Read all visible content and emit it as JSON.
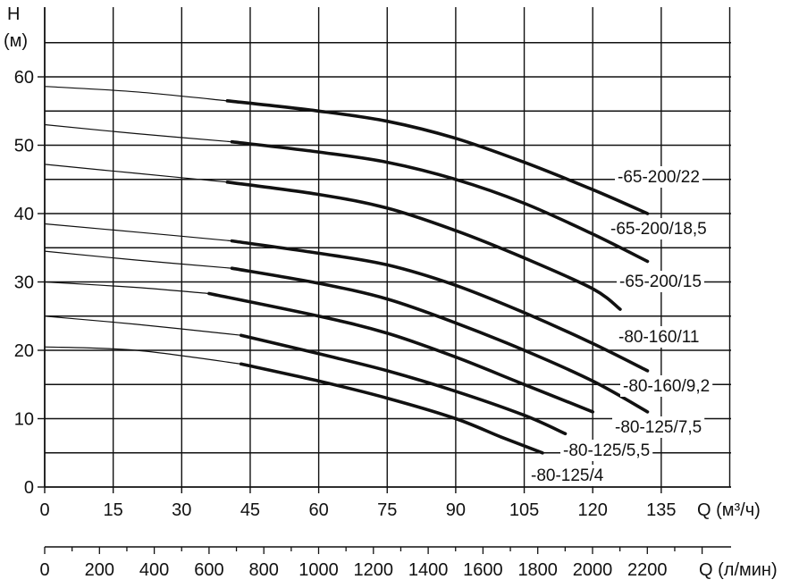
{
  "chart_data": {
    "type": "line",
    "y_axis": {
      "title_line1": "H",
      "title_line2": "(м)",
      "range": [
        0,
        65
      ],
      "ticks": [
        0,
        10,
        20,
        30,
        40,
        50,
        60
      ]
    },
    "x_axis": {
      "title": "Q (м³/ч)",
      "range": [
        0,
        150
      ],
      "ticks": [
        0,
        15,
        30,
        45,
        60,
        75,
        90,
        105,
        120,
        135
      ]
    },
    "x_axis_secondary": {
      "title": "Q (л/мин)",
      "ticks": [
        0,
        200,
        400,
        600,
        800,
        1000,
        1200,
        1400,
        1600,
        1800,
        2000,
        2200
      ]
    },
    "grid": true,
    "series": [
      {
        "name": "-65-200/22",
        "thin": [
          [
            0,
            58.6
          ],
          [
            20,
            57.8
          ],
          [
            40,
            56.5
          ]
        ],
        "thick": [
          [
            40,
            56.5
          ],
          [
            60,
            55
          ],
          [
            75,
            53.5
          ],
          [
            90,
            51
          ],
          [
            105,
            47.5
          ],
          [
            120,
            43.5
          ],
          [
            132,
            40
          ]
        ]
      },
      {
        "name": "-65-200/18,5",
        "thin": [
          [
            0,
            53
          ],
          [
            20,
            51.7
          ],
          [
            41,
            50.5
          ]
        ],
        "thick": [
          [
            41,
            50.5
          ],
          [
            60,
            49
          ],
          [
            75,
            47.5
          ],
          [
            90,
            45
          ],
          [
            105,
            41.5
          ],
          [
            120,
            37
          ],
          [
            132,
            33
          ]
        ]
      },
      {
        "name": "-65-200/15",
        "thin": [
          [
            0,
            47.2
          ],
          [
            20,
            45.9
          ],
          [
            40,
            44.6
          ]
        ],
        "thick": [
          [
            40,
            44.6
          ],
          [
            60,
            42.8
          ],
          [
            75,
            40.8
          ],
          [
            90,
            37.5
          ],
          [
            105,
            33.5
          ],
          [
            120,
            29
          ],
          [
            126,
            26
          ]
        ]
      },
      {
        "name": "-80-160/11",
        "thin": [
          [
            0,
            38.5
          ],
          [
            20,
            37.3
          ],
          [
            41,
            36
          ]
        ],
        "thick": [
          [
            41,
            36
          ],
          [
            60,
            34.2
          ],
          [
            75,
            32.5
          ],
          [
            90,
            29.5
          ],
          [
            105,
            25.5
          ],
          [
            120,
            21
          ],
          [
            132,
            17
          ]
        ]
      },
      {
        "name": "-80-160/9,2",
        "thin": [
          [
            0,
            34.5
          ],
          [
            20,
            33.2
          ],
          [
            41,
            32
          ]
        ],
        "thick": [
          [
            41,
            32
          ],
          [
            60,
            29.8
          ],
          [
            75,
            27.5
          ],
          [
            90,
            24
          ],
          [
            105,
            20
          ],
          [
            120,
            15.5
          ],
          [
            132,
            11
          ]
        ]
      },
      {
        "name": "-80-125/7,5",
        "thin": [
          [
            0,
            30
          ],
          [
            20,
            29.2
          ],
          [
            36,
            28.3
          ]
        ],
        "thick": [
          [
            36,
            28.3
          ],
          [
            60,
            25
          ],
          [
            75,
            22.5
          ],
          [
            90,
            19
          ],
          [
            105,
            15
          ],
          [
            120,
            11
          ]
        ]
      },
      {
        "name": "-80-125/5,5",
        "thin": [
          [
            0,
            25
          ],
          [
            20,
            23.8
          ],
          [
            43,
            22.2
          ]
        ],
        "thick": [
          [
            43,
            22.2
          ],
          [
            60,
            19.5
          ],
          [
            75,
            17
          ],
          [
            90,
            14
          ],
          [
            105,
            10.5
          ],
          [
            114,
            7.8
          ]
        ]
      },
      {
        "name": "-80-125/4",
        "thin": [
          [
            0,
            20.5
          ],
          [
            20,
            20
          ],
          [
            43,
            18
          ]
        ],
        "thick": [
          [
            43,
            18
          ],
          [
            60,
            15.5
          ],
          [
            75,
            13
          ],
          [
            90,
            10
          ],
          [
            100,
            7.3
          ],
          [
            109,
            5
          ]
        ]
      }
    ]
  }
}
